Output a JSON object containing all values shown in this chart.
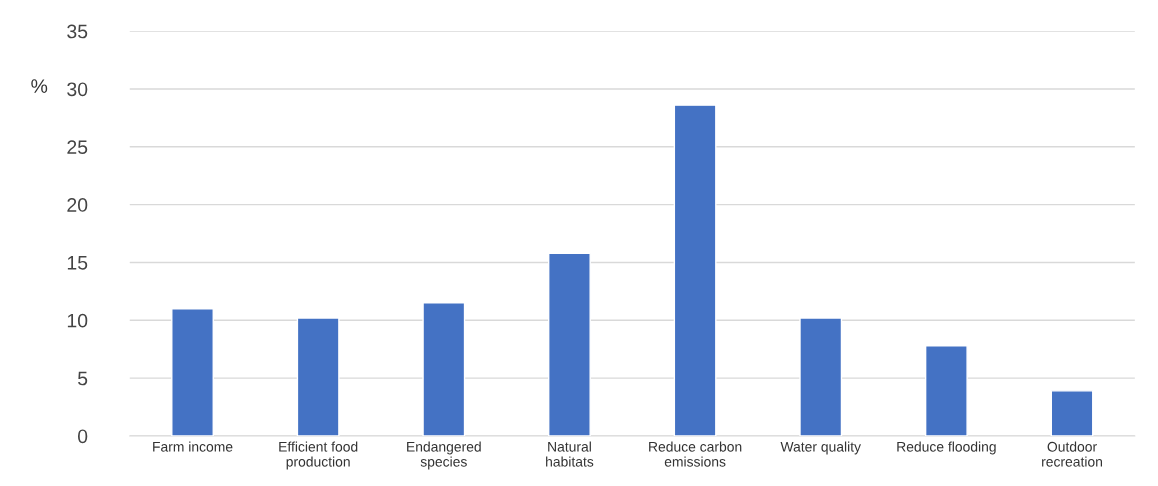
{
  "chart_data": {
    "type": "bar",
    "ylabel": "%",
    "categories": [
      "Farm income",
      "Efficient food production",
      "Endangered species",
      "Natural habitats",
      "Reduce carbon emissions",
      "Water quality",
      "Reduce flooding",
      "Outdoor recreation"
    ],
    "values": [
      11.0,
      10.2,
      11.5,
      15.8,
      28.6,
      10.2,
      7.8,
      3.9
    ],
    "color": "#4472c4",
    "ylim": [
      0,
      35
    ],
    "yticks": [
      0,
      5,
      10,
      15,
      20,
      25,
      30,
      35
    ],
    "grid": "y",
    "legend": false
  }
}
